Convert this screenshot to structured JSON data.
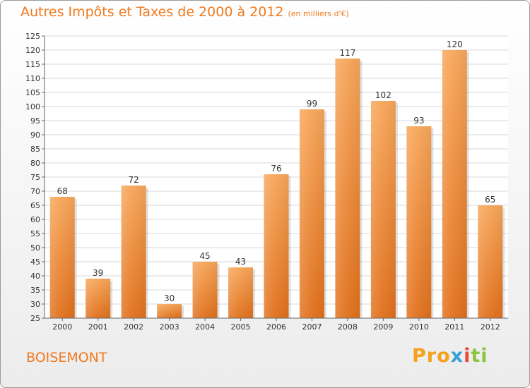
{
  "header": {
    "title": "Autres Impôts et Taxes de 2000 à 2012",
    "subtitle": "(en milliers d'€)"
  },
  "commune": "BOISEMONT",
  "logo": {
    "text": "Proxiti"
  },
  "colors": {
    "accent": "#f07a1e",
    "bar_top": "#f7a65a",
    "bar_bottom": "#e1701c"
  },
  "chart_data": {
    "type": "bar",
    "categories": [
      "2000",
      "2001",
      "2002",
      "2003",
      "2004",
      "2005",
      "2006",
      "2007",
      "2008",
      "2009",
      "2010",
      "2011",
      "2012"
    ],
    "values": [
      68,
      39,
      72,
      30,
      45,
      43,
      76,
      99,
      117,
      102,
      93,
      120,
      65
    ],
    "title": "Autres Impôts et Taxes de 2000 à 2012",
    "subtitle": "(en milliers d'€)",
    "ylim": [
      25,
      125
    ],
    "yticks": [
      25,
      30,
      35,
      40,
      45,
      50,
      55,
      60,
      65,
      70,
      75,
      80,
      85,
      90,
      95,
      100,
      105,
      110,
      115,
      120,
      125
    ],
    "grid": true,
    "legend": "none"
  }
}
